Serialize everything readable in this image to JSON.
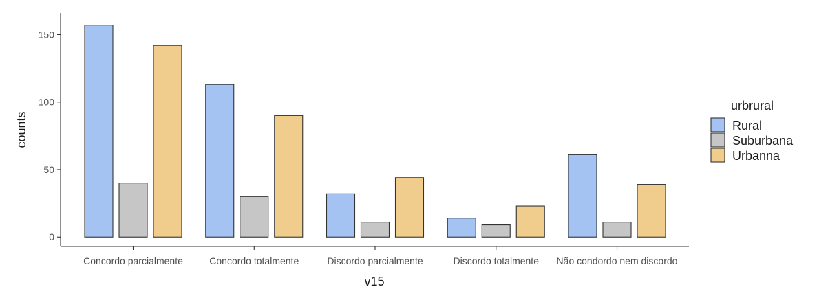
{
  "chart_data": {
    "type": "bar",
    "xlabel": "v15",
    "ylabel": "counts",
    "categories": [
      "Concordo parcialmente",
      "Concordo totalmente",
      "Discordo parcialmente",
      "Discordo totalmente",
      "Não condordo nem discordo"
    ],
    "series": [
      {
        "name": "Rural",
        "values": [
          157,
          113,
          32,
          14,
          61
        ],
        "color": "#a4c3f2"
      },
      {
        "name": "Suburbana",
        "values": [
          40,
          30,
          11,
          9,
          11
        ],
        "color": "#c6c6c6"
      },
      {
        "name": "Urbanna",
        "values": [
          142,
          90,
          44,
          23,
          39
        ],
        "color": "#f0cd8d"
      }
    ],
    "ylim": [
      -7,
      166
    ],
    "yticks": [
      0,
      50,
      100,
      150
    ],
    "legend": {
      "title": "urbrural",
      "position": "right"
    },
    "grid": false
  }
}
